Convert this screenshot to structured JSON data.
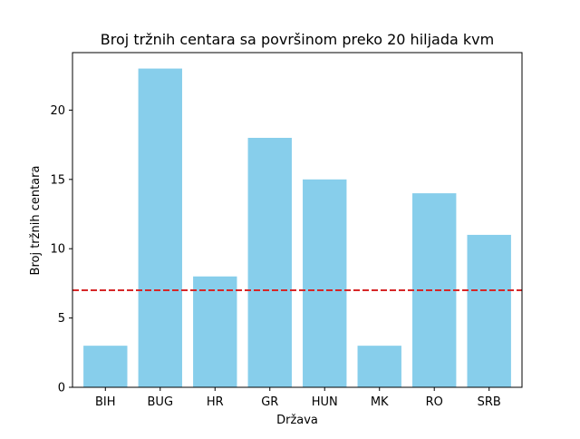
{
  "chart_data": {
    "type": "bar",
    "title": "Broj tržnih centara sa površinom preko 20 hiljada kvm",
    "xlabel": "Država",
    "ylabel": "Broj tržnih centara",
    "categories": [
      "BIH",
      "BUG",
      "HR",
      "GR",
      "HUN",
      "MK",
      "RO",
      "SRB"
    ],
    "values": [
      3,
      23,
      8,
      18,
      15,
      3,
      14,
      11
    ],
    "ylim": [
      0,
      24.15
    ],
    "yticks": [
      0,
      5,
      10,
      15,
      20
    ],
    "reference_line": {
      "value": 7,
      "color": "#d62728",
      "style": "dashed"
    },
    "bar_color": "#87ceeb",
    "grid": false,
    "legend": "none"
  }
}
